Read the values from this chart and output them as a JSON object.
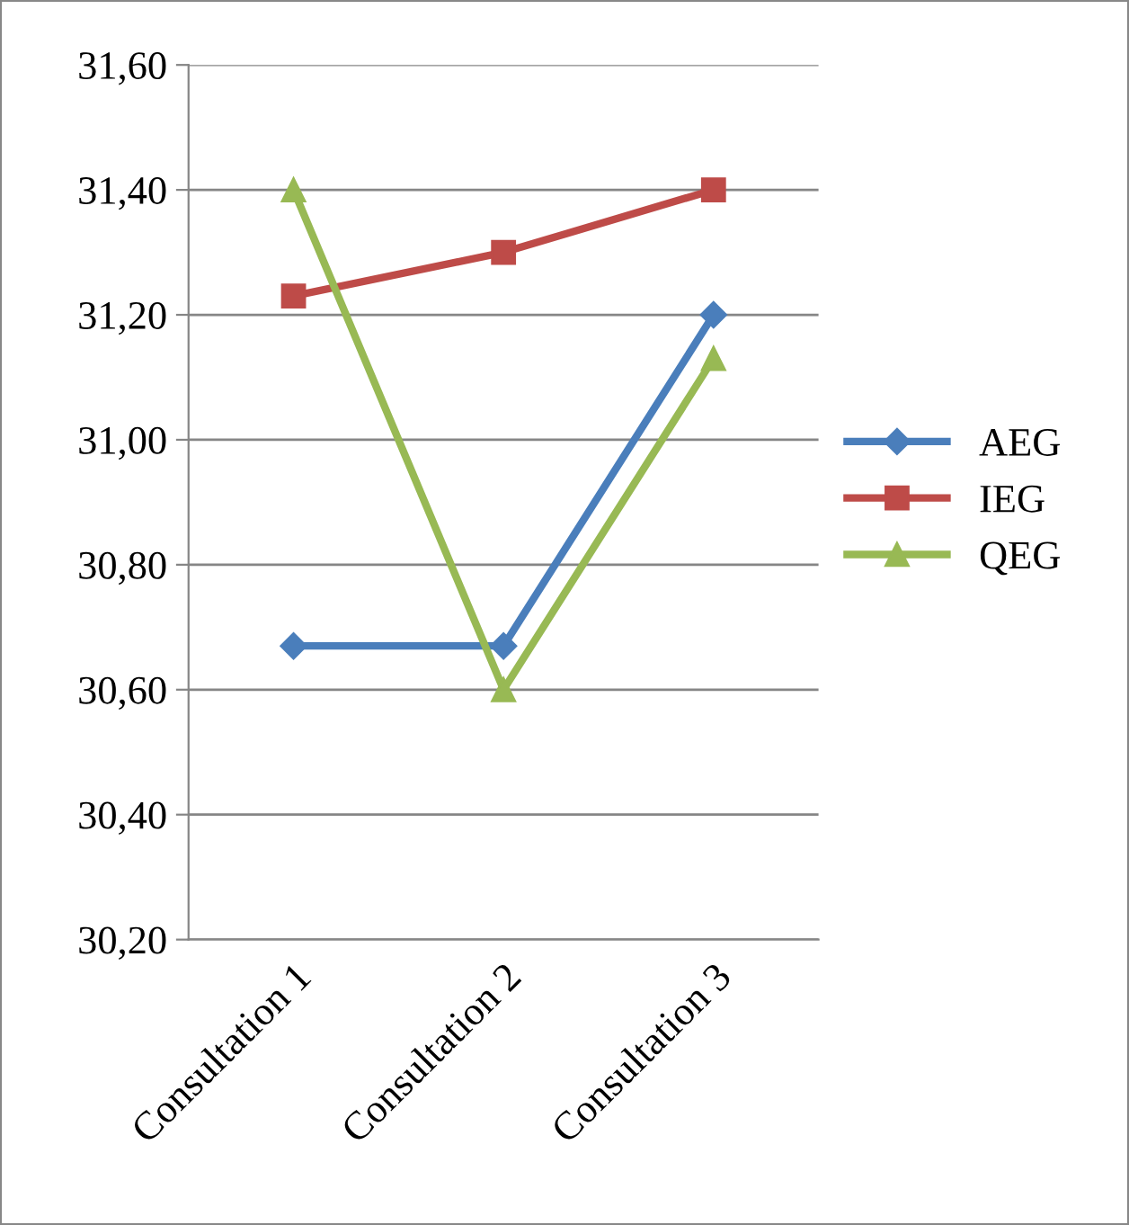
{
  "chart_data": {
    "type": "line",
    "categories": [
      "Consultation 1",
      "Consultation 2",
      "Consultation 3"
    ],
    "series": [
      {
        "name": "AEG",
        "color": "#4a7ebb",
        "marker": "diamond",
        "values": [
          30.67,
          30.67,
          31.2
        ]
      },
      {
        "name": "IEG",
        "color": "#be4b48",
        "marker": "square",
        "values": [
          31.23,
          31.3,
          31.4
        ]
      },
      {
        "name": "QEG",
        "color": "#98b954",
        "marker": "triangle",
        "values": [
          31.4,
          30.6,
          31.13
        ]
      }
    ],
    "ylim": [
      30.2,
      31.6
    ],
    "yticks": [
      {
        "value": 30.2,
        "label": "30,20"
      },
      {
        "value": 30.4,
        "label": "30,40"
      },
      {
        "value": 30.6,
        "label": "30,60"
      },
      {
        "value": 30.8,
        "label": "30,80"
      },
      {
        "value": 31.0,
        "label": "31,00"
      },
      {
        "value": 31.2,
        "label": "31,20"
      },
      {
        "value": 31.4,
        "label": "31,40"
      },
      {
        "value": 31.6,
        "label": "31,60"
      }
    ],
    "grid": "y",
    "legend": "right",
    "line_style": "solid"
  }
}
